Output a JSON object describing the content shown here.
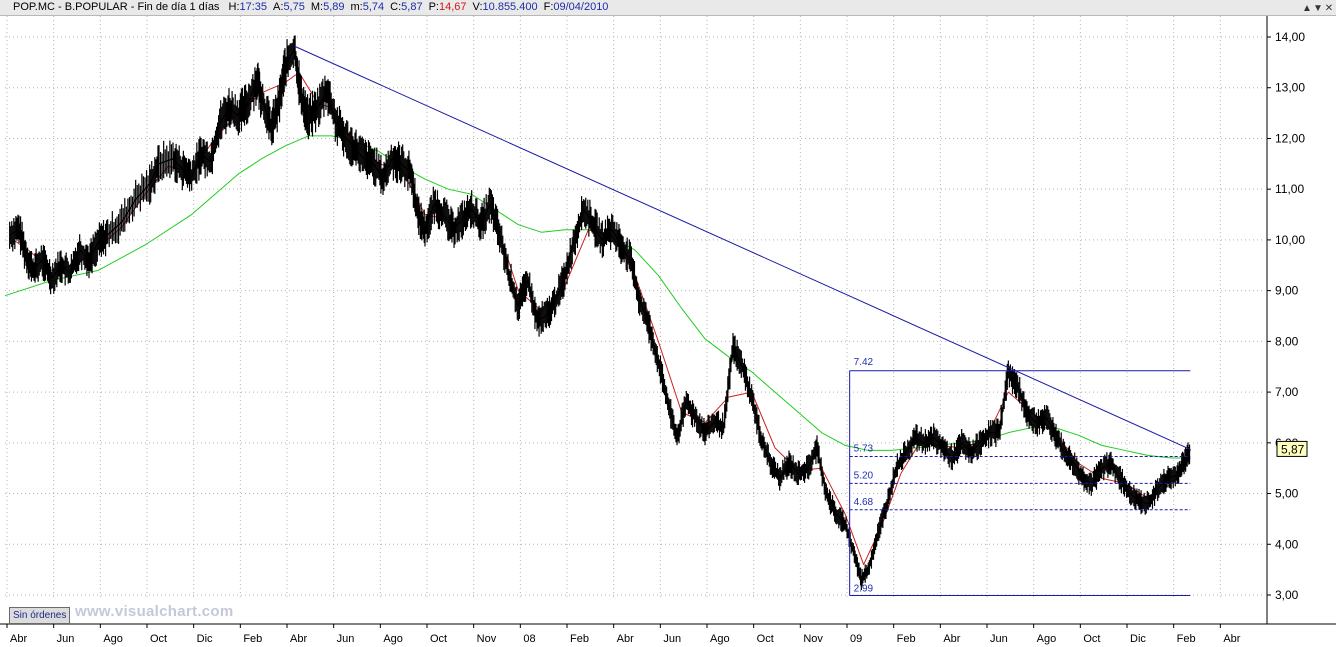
{
  "header": {
    "title": "POP.MC - B.POPULAR - Fin de día 1 días",
    "fields": [
      {
        "key": "H:",
        "value": "17:35",
        "color": "#1b2ea8"
      },
      {
        "key": "A:",
        "value": "5,75",
        "color": "#1b2ea8"
      },
      {
        "key": "M:",
        "value": "5,89",
        "color": "#1b2ea8"
      },
      {
        "key": "m:",
        "value": "5,74",
        "color": "#1b2ea8"
      },
      {
        "key": "C:",
        "value": "5,87",
        "color": "#1b2ea8"
      },
      {
        "key": "P:",
        "value": "14,67",
        "color": "#d01818"
      },
      {
        "key": "V:",
        "value": "10.855.400",
        "color": "#1b2ea8"
      },
      {
        "key": "F:",
        "value": "09/04/2010",
        "color": "#1b2ea8"
      }
    ],
    "window_buttons": [
      "▲",
      "▼",
      "✕"
    ]
  },
  "status_button": "Sin órdenes",
  "watermark": "www.visualchart.com",
  "chart_data": {
    "type": "line",
    "ylim": [
      3.0,
      14.0
    ],
    "yticks": [
      "14,00",
      "13,00",
      "12,00",
      "11,00",
      "10,00",
      "9,00",
      "8,00",
      "7,00",
      "6,00",
      "5,00",
      "4,00",
      "3,00"
    ],
    "ytick_values": [
      14,
      13,
      12,
      11,
      10,
      9,
      8,
      7,
      6,
      5,
      4,
      3
    ],
    "xlim": [
      0,
      27
    ],
    "xticks": [
      {
        "label": "Abr",
        "x": 0
      },
      {
        "label": "Jun",
        "x": 1
      },
      {
        "label": "Ago",
        "x": 2
      },
      {
        "label": "Oct",
        "x": 3
      },
      {
        "label": "Dic",
        "x": 4
      },
      {
        "label": "Feb",
        "x": 5
      },
      {
        "label": "Abr",
        "x": 6
      },
      {
        "label": "Jun",
        "x": 7
      },
      {
        "label": "Ago",
        "x": 8
      },
      {
        "label": "Oct",
        "x": 9
      },
      {
        "label": "Nov",
        "x": 10
      },
      {
        "label": "08",
        "x": 11
      },
      {
        "label": "Feb",
        "x": 12
      },
      {
        "label": "Abr",
        "x": 13
      },
      {
        "label": "Jun",
        "x": 14
      },
      {
        "label": "Ago",
        "x": 15
      },
      {
        "label": "Oct",
        "x": 16
      },
      {
        "label": "Nov",
        "x": 17
      },
      {
        "label": "09",
        "x": 18
      },
      {
        "label": "Feb",
        "x": 19
      },
      {
        "label": "Abr",
        "x": 20
      },
      {
        "label": "Jun",
        "x": 21
      },
      {
        "label": "Ago",
        "x": 22
      },
      {
        "label": "Oct",
        "x": 23
      },
      {
        "label": "Dic",
        "x": 24
      },
      {
        "label": "Feb",
        "x": 25
      },
      {
        "label": "Abr",
        "x": 26
      }
    ],
    "series": [
      {
        "role": "price",
        "color": "#000000",
        "points": [
          [
            0.1,
            10.1
          ],
          [
            0.3,
            10.2
          ],
          [
            0.45,
            9.7
          ],
          [
            0.6,
            9.4
          ],
          [
            0.8,
            9.6
          ],
          [
            1.0,
            9.25
          ],
          [
            1.2,
            9.5
          ],
          [
            1.4,
            9.35
          ],
          [
            1.6,
            9.8
          ],
          [
            1.8,
            9.6
          ],
          [
            2.0,
            9.95
          ],
          [
            2.2,
            10.1
          ],
          [
            2.5,
            10.35
          ],
          [
            2.8,
            10.8
          ],
          [
            3.1,
            11.1
          ],
          [
            3.3,
            11.5
          ],
          [
            3.6,
            11.6
          ],
          [
            3.8,
            11.4
          ],
          [
            4.0,
            11.25
          ],
          [
            4.2,
            11.7
          ],
          [
            4.4,
            11.55
          ],
          [
            4.6,
            12.3
          ],
          [
            4.8,
            12.6
          ],
          [
            5.0,
            12.45
          ],
          [
            5.2,
            12.7
          ],
          [
            5.4,
            13.15
          ],
          [
            5.5,
            12.8
          ],
          [
            5.7,
            12.2
          ],
          [
            5.85,
            12.6
          ],
          [
            6.0,
            13.4
          ],
          [
            6.2,
            13.75
          ],
          [
            6.35,
            12.8
          ],
          [
            6.5,
            12.4
          ],
          [
            6.7,
            12.6
          ],
          [
            6.9,
            12.95
          ],
          [
            7.1,
            12.3
          ],
          [
            7.3,
            12.0
          ],
          [
            7.5,
            11.8
          ],
          [
            7.7,
            11.6
          ],
          [
            7.9,
            11.5
          ],
          [
            8.1,
            11.2
          ],
          [
            8.3,
            11.6
          ],
          [
            8.5,
            11.5
          ],
          [
            8.7,
            11.3
          ],
          [
            8.85,
            10.5
          ],
          [
            9.0,
            10.2
          ],
          [
            9.2,
            10.7
          ],
          [
            9.4,
            10.5
          ],
          [
            9.6,
            10.2
          ],
          [
            9.8,
            10.4
          ],
          [
            10.0,
            10.6
          ],
          [
            10.2,
            10.3
          ],
          [
            10.4,
            10.7
          ],
          [
            10.6,
            10.1
          ],
          [
            10.8,
            9.3
          ],
          [
            11.0,
            8.7
          ],
          [
            11.2,
            9.2
          ],
          [
            11.4,
            8.4
          ],
          [
            11.6,
            8.5
          ],
          [
            11.8,
            8.8
          ],
          [
            12.0,
            9.3
          ],
          [
            12.2,
            10.0
          ],
          [
            12.4,
            10.6
          ],
          [
            12.6,
            10.3
          ],
          [
            12.8,
            10.0
          ],
          [
            13.0,
            10.2
          ],
          [
            13.2,
            9.9
          ],
          [
            13.4,
            9.6
          ],
          [
            13.6,
            8.8
          ],
          [
            13.8,
            8.3
          ],
          [
            14.0,
            7.6
          ],
          [
            14.2,
            6.8
          ],
          [
            14.4,
            6.1
          ],
          [
            14.6,
            6.8
          ],
          [
            14.8,
            6.5
          ],
          [
            15.0,
            6.2
          ],
          [
            15.2,
            6.4
          ],
          [
            15.4,
            6.3
          ],
          [
            15.6,
            7.9
          ],
          [
            15.8,
            7.5
          ],
          [
            16.0,
            6.9
          ],
          [
            16.2,
            6.1
          ],
          [
            16.4,
            5.6
          ],
          [
            16.6,
            5.3
          ],
          [
            16.8,
            5.6
          ],
          [
            17.0,
            5.4
          ],
          [
            17.2,
            5.5
          ],
          [
            17.4,
            5.9
          ],
          [
            17.6,
            5.0
          ],
          [
            17.8,
            4.6
          ],
          [
            18.0,
            4.4
          ],
          [
            18.2,
            3.8
          ],
          [
            18.35,
            3.3
          ],
          [
            18.5,
            3.5
          ],
          [
            18.7,
            4.2
          ],
          [
            18.9,
            4.8
          ],
          [
            19.1,
            5.5
          ],
          [
            19.3,
            5.8
          ],
          [
            19.5,
            6.1
          ],
          [
            19.7,
            6.0
          ],
          [
            19.9,
            6.1
          ],
          [
            20.1,
            5.9
          ],
          [
            20.3,
            5.7
          ],
          [
            20.5,
            6.0
          ],
          [
            20.7,
            5.8
          ],
          [
            20.9,
            6.0
          ],
          [
            21.1,
            6.2
          ],
          [
            21.3,
            6.2
          ],
          [
            21.5,
            7.4
          ],
          [
            21.7,
            7.1
          ],
          [
            21.9,
            6.6
          ],
          [
            22.1,
            6.4
          ],
          [
            22.3,
            6.5
          ],
          [
            22.5,
            6.2
          ],
          [
            22.7,
            5.8
          ],
          [
            22.9,
            5.6
          ],
          [
            23.1,
            5.3
          ],
          [
            23.3,
            5.2
          ],
          [
            23.5,
            5.5
          ],
          [
            23.7,
            5.6
          ],
          [
            23.9,
            5.3
          ],
          [
            24.1,
            5.0
          ],
          [
            24.3,
            4.85
          ],
          [
            24.5,
            4.8
          ],
          [
            24.7,
            5.1
          ],
          [
            24.9,
            5.3
          ],
          [
            25.1,
            5.35
          ],
          [
            25.25,
            5.6
          ],
          [
            25.4,
            5.87
          ]
        ]
      },
      {
        "role": "fast-average",
        "color": "#cc2020",
        "points": [
          [
            0.1,
            10.05
          ],
          [
            0.5,
            9.8
          ],
          [
            1.0,
            9.4
          ],
          [
            1.5,
            9.5
          ],
          [
            2.0,
            9.85
          ],
          [
            2.5,
            10.25
          ],
          [
            3.0,
            10.9
          ],
          [
            3.5,
            11.45
          ],
          [
            4.0,
            11.35
          ],
          [
            4.5,
            12.0
          ],
          [
            5.0,
            12.5
          ],
          [
            5.5,
            12.9
          ],
          [
            6.0,
            13.1
          ],
          [
            6.3,
            13.3
          ],
          [
            6.7,
            12.7
          ],
          [
            7.0,
            12.6
          ],
          [
            7.5,
            11.9
          ],
          [
            8.0,
            11.5
          ],
          [
            8.5,
            11.4
          ],
          [
            9.0,
            10.5
          ],
          [
            9.5,
            10.4
          ],
          [
            10.0,
            10.45
          ],
          [
            10.5,
            10.4
          ],
          [
            11.0,
            9.0
          ],
          [
            11.5,
            8.6
          ],
          [
            12.0,
            9.1
          ],
          [
            12.5,
            10.2
          ],
          [
            13.0,
            10.1
          ],
          [
            13.5,
            9.3
          ],
          [
            14.0,
            8.0
          ],
          [
            14.5,
            6.6
          ],
          [
            15.0,
            6.4
          ],
          [
            15.5,
            6.9
          ],
          [
            16.0,
            7.0
          ],
          [
            16.5,
            5.9
          ],
          [
            17.0,
            5.45
          ],
          [
            17.5,
            5.5
          ],
          [
            18.0,
            4.6
          ],
          [
            18.4,
            3.6
          ],
          [
            18.8,
            4.4
          ],
          [
            19.2,
            5.4
          ],
          [
            19.6,
            6.0
          ],
          [
            20.0,
            5.95
          ],
          [
            20.5,
            5.9
          ],
          [
            21.0,
            6.05
          ],
          [
            21.5,
            7.0
          ],
          [
            22.0,
            6.6
          ],
          [
            22.5,
            6.2
          ],
          [
            23.0,
            5.6
          ],
          [
            23.5,
            5.3
          ],
          [
            24.0,
            5.2
          ],
          [
            24.5,
            4.9
          ],
          [
            25.0,
            5.2
          ],
          [
            25.4,
            5.7
          ]
        ]
      },
      {
        "role": "slow-average",
        "color": "#22cc22",
        "points": [
          [
            0.0,
            8.9
          ],
          [
            1.0,
            9.2
          ],
          [
            2.0,
            9.4
          ],
          [
            3.0,
            9.9
          ],
          [
            4.0,
            10.5
          ],
          [
            5.0,
            11.3
          ],
          [
            5.5,
            11.6
          ],
          [
            6.0,
            11.85
          ],
          [
            6.5,
            12.05
          ],
          [
            7.0,
            12.05
          ],
          [
            7.5,
            11.95
          ],
          [
            8.0,
            11.75
          ],
          [
            8.5,
            11.45
          ],
          [
            9.0,
            11.2
          ],
          [
            9.5,
            11.0
          ],
          [
            10.0,
            10.9
          ],
          [
            10.5,
            10.6
          ],
          [
            11.0,
            10.3
          ],
          [
            11.5,
            10.15
          ],
          [
            12.0,
            10.2
          ],
          [
            12.5,
            10.2
          ],
          [
            13.0,
            10.05
          ],
          [
            13.5,
            9.8
          ],
          [
            14.0,
            9.3
          ],
          [
            14.5,
            8.65
          ],
          [
            15.0,
            8.05
          ],
          [
            15.5,
            7.7
          ],
          [
            16.0,
            7.4
          ],
          [
            16.5,
            7.0
          ],
          [
            17.0,
            6.6
          ],
          [
            17.5,
            6.2
          ],
          [
            18.0,
            5.95
          ],
          [
            18.5,
            5.85
          ],
          [
            19.0,
            5.85
          ],
          [
            19.5,
            5.9
          ],
          [
            20.0,
            5.95
          ],
          [
            20.5,
            6.0
          ],
          [
            21.0,
            6.05
          ],
          [
            21.5,
            6.2
          ],
          [
            22.0,
            6.3
          ],
          [
            22.5,
            6.3
          ],
          [
            23.0,
            6.15
          ],
          [
            23.5,
            5.95
          ],
          [
            24.0,
            5.85
          ],
          [
            24.5,
            5.75
          ],
          [
            25.0,
            5.7
          ],
          [
            25.4,
            5.7
          ]
        ]
      }
    ],
    "trendline": {
      "color": "#1a1aa8",
      "from": [
        6.2,
        13.82
      ],
      "to": [
        25.4,
        5.87
      ]
    },
    "retracement": {
      "color": "#1a1aa8",
      "x_start": 18.1,
      "x_end": 25.4,
      "high": 7.42,
      "low": 2.99,
      "levels": [
        {
          "label": "7.42",
          "value": 7.42,
          "style": "solid"
        },
        {
          "label": "5.73",
          "value": 5.73,
          "style": "dashed"
        },
        {
          "label": "5.20",
          "value": 5.2,
          "style": "dashed"
        },
        {
          "label": "4.68",
          "value": 4.68,
          "style": "dashed"
        },
        {
          "label": "2.99",
          "value": 2.99,
          "style": "solid"
        }
      ]
    },
    "last_price": {
      "label": "5,87",
      "value": 5.87,
      "color": "#ffffc0"
    }
  }
}
